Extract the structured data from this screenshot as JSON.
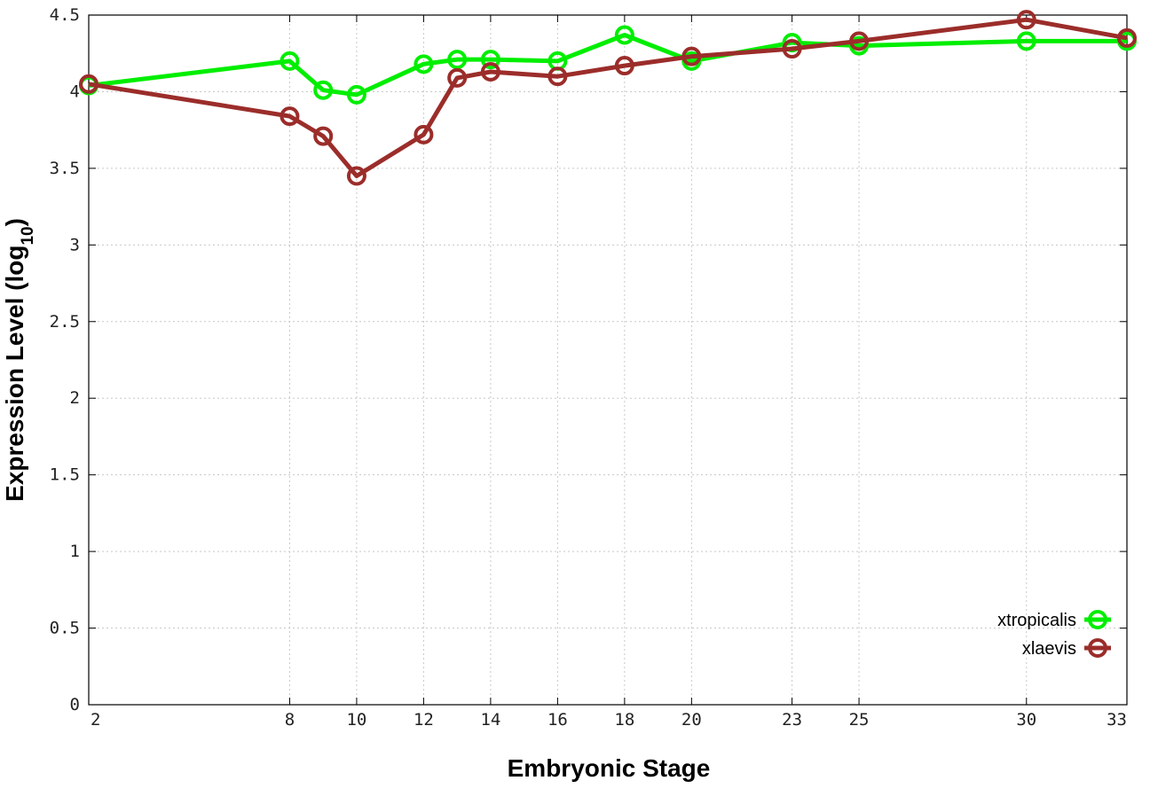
{
  "chart_data": {
    "type": "line",
    "title": "",
    "xlabel": "Embryonic Stage",
    "ylabel": "Expression Level (log",
    "ylabel_subscript": "10",
    "ylabel_suffix": ")",
    "x_ticks": [
      2,
      8,
      10,
      12,
      14,
      16,
      18,
      20,
      23,
      25,
      30,
      33
    ],
    "x_tick_labels": [
      "2",
      "8",
      "10",
      "12",
      "14",
      "16",
      "18",
      "20",
      "23",
      "25",
      "30",
      "33"
    ],
    "xlim": [
      2,
      33
    ],
    "y_ticks": [
      0,
      0.5,
      1,
      1.5,
      2,
      2.5,
      3,
      3.5,
      4,
      4.5
    ],
    "y_tick_labels": [
      "0",
      "0.5",
      "1",
      "1.5",
      "2",
      "2.5",
      "3",
      "3.5",
      "4",
      "4.5"
    ],
    "ylim": [
      0,
      4.5
    ],
    "grid": true,
    "legend_position": "bottom-right",
    "series": [
      {
        "name": "xtropicalis",
        "color": "#00ee00",
        "marker": "circle-open",
        "x": [
          2,
          8,
          9,
          10,
          12,
          13,
          14,
          16,
          18,
          20,
          23,
          25,
          30,
          33
        ],
        "y": [
          4.04,
          4.2,
          4.01,
          3.98,
          4.18,
          4.21,
          4.21,
          4.2,
          4.37,
          4.2,
          4.32,
          4.3,
          4.33,
          4.33
        ]
      },
      {
        "name": "xlaevis",
        "color": "#9b2d2a",
        "marker": "circle-open",
        "x": [
          2,
          8,
          9,
          10,
          12,
          13,
          14,
          16,
          18,
          20,
          23,
          25,
          30,
          33
        ],
        "y": [
          4.05,
          3.84,
          3.71,
          3.45,
          3.72,
          4.09,
          4.13,
          4.1,
          4.17,
          4.23,
          4.28,
          4.33,
          4.47,
          4.35
        ]
      }
    ]
  }
}
